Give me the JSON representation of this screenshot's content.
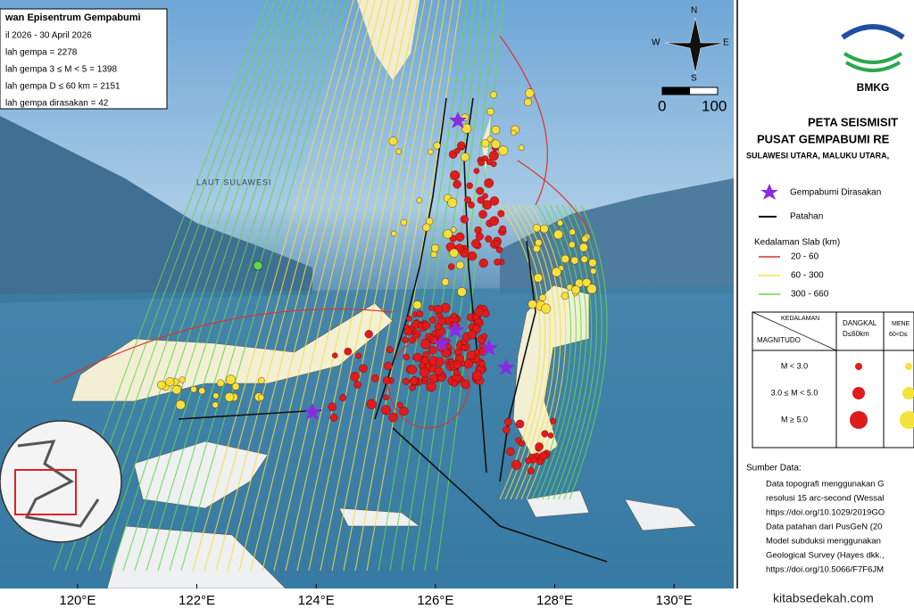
{
  "info_box": {
    "title": "wan Episentrum Gempabumi",
    "lines": [
      "il 2026 - 30 April 2026",
      "lah gempa = 2278",
      "lah gempa 3 ≤ M < 5 = 1398",
      "lah gempa D ≤ 60 km = 2151",
      "lah gempa dirasakan = 42"
    ]
  },
  "map": {
    "sea_label": "LAUT SULAWESI",
    "compass": {
      "n": "N",
      "s": "S",
      "w": "W",
      "e": "E"
    },
    "scale": {
      "start": "0",
      "end": "100"
    },
    "xlim": [
      118.7,
      131
    ],
    "xticks": [
      {
        "value": 120,
        "label": "120°E"
      },
      {
        "value": 122,
        "label": "122°E"
      },
      {
        "value": 124,
        "label": "124°E"
      },
      {
        "value": 126,
        "label": "126°E"
      },
      {
        "value": 128,
        "label": "128°E"
      },
      {
        "value": 130,
        "label": "130°E"
      }
    ]
  },
  "panel": {
    "logo": "BMKG",
    "title1": "PETA SEISMISIT",
    "title2": "PUSAT GEMPABUMI RE",
    "subtitle": "SULAWESI UTARA, MALUKU UTARA,",
    "legend": {
      "felt": "Gempabumi Dirasakan",
      "fault": "Patahan",
      "slab_title": "Kedalaman Slab (km)",
      "slab": [
        {
          "label": "20 - 60",
          "color": "#d9342b"
        },
        {
          "label": "60 - 300",
          "color": "#f2e23a"
        },
        {
          "label": "300 - 660",
          "color": "#62d84a"
        }
      ]
    },
    "table": {
      "depth": "KEDALAMAN",
      "magnitude": "MAGNITUDO",
      "shallow1": "DANGKAL",
      "shallow2": "D≤60km",
      "mid1": "MENE",
      "mid2": "60<D≤",
      "rows": [
        "M < 3.0",
        "3.0 ≤ M < 5.0",
        "M ≥ 5.0"
      ]
    },
    "source": {
      "title": "Sumber Data:",
      "lines": [
        "Data topografi menggunakan G",
        "resolusi 15 arc-second (Wessal",
        "https://doi.org/10.1029/2019GO",
        "Data patahan dari PusGeN (20",
        "Model subduksi menggunakan",
        "Geological Survey (Hayes dkk.,",
        "https://doi.org/10.5066/F7F6JM"
      ]
    }
  },
  "footer": "kitabsedekah.com"
}
